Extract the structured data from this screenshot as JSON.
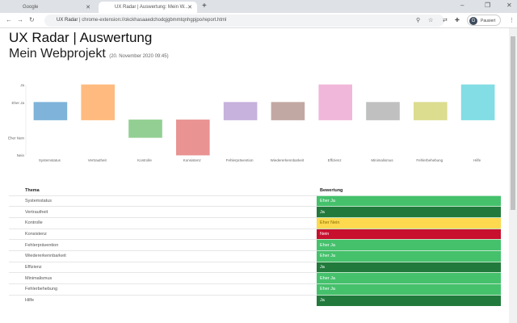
{
  "browser": {
    "tabs": [
      {
        "label": "Google",
        "icon": "google-icon"
      },
      {
        "label": "UX Radar | Auswertung: Mein W..."
      }
    ],
    "url_prefix": "UX Radar",
    "url": "chrome-extension://okckhasaaedchodqjgbmmtqnhgpjpo/report.html",
    "profile": "Pausiert",
    "profile_initial": "G"
  },
  "page": {
    "title": "UX Radar | Auswertung",
    "project": "Mein Webprojekt",
    "date": "(20. November 2020 09:45)"
  },
  "chart_data": {
    "type": "bar",
    "categories": [
      "Systemstatus",
      "Vertrautheit",
      "Kontrolle",
      "Konsistenz",
      "Fehlerprävention",
      "Wiedererkennbarkeit",
      "Effizienz",
      "Minimalismus",
      "Fehlerbehebung",
      "Hilfe"
    ],
    "values": [
      1,
      2,
      -1,
      -2,
      1,
      1,
      2,
      1,
      1,
      2
    ],
    "ytick_labels": {
      "2": "Ja",
      "1": "Eher Ja",
      "-1": "Eher Nein",
      "-2": "Nein"
    },
    "ylim": [
      -2,
      2
    ],
    "colors": [
      "#7fb3d9",
      "#ffbb7f",
      "#93cf93",
      "#e99393",
      "#c6b2dd",
      "#c2a8a3",
      "#f0b7da",
      "#c0c0c0",
      "#dcdd8f",
      "#82dde4"
    ]
  },
  "table": {
    "headers": [
      "Thema",
      "Bewertung"
    ],
    "rows": [
      [
        "Systemstatus",
        "Eher Ja"
      ],
      [
        "Vertrautheit",
        "Ja"
      ],
      [
        "Kontrolle",
        "Eher Nein"
      ],
      [
        "Konsistenz",
        "Nein"
      ],
      [
        "Fehlerprävention",
        "Eher Ja"
      ],
      [
        "Wiedererkennbarkeit",
        "Eher Ja"
      ],
      [
        "Effizienz",
        "Ja"
      ],
      [
        "Minimalismus",
        "Eher Ja"
      ],
      [
        "Fehlerbehebung",
        "Eher Ja"
      ],
      [
        "Hilfe",
        "Ja"
      ]
    ]
  },
  "rating_colors": {
    "Ja": "#217a3c",
    "Eher Ja": "#45c16c",
    "Eher Nein": "#fcd94e",
    "Nein": "#c8102e"
  }
}
